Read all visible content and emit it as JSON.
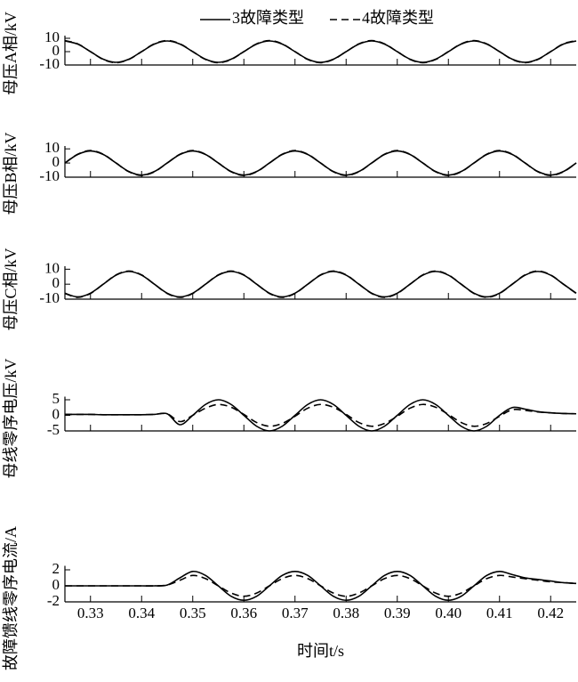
{
  "chart_data": [
    {
      "type": "line",
      "y_label": "母压A相/kV",
      "legend": "top",
      "x": [
        0.325,
        0.3275,
        0.33,
        0.3325,
        0.335,
        0.3375,
        0.34,
        0.3425,
        0.345,
        0.3475,
        0.35,
        0.3525,
        0.355,
        0.3575,
        0.36,
        0.3625,
        0.365,
        0.3675,
        0.37,
        0.3725,
        0.375,
        0.3775,
        0.38,
        0.3825,
        0.385,
        0.3875,
        0.39,
        0.3925,
        0.395,
        0.3975,
        0.4,
        0.4025,
        0.405,
        0.4075,
        0.41,
        0.4125,
        0.415,
        0.4175,
        0.42,
        0.4225,
        0.425
      ],
      "xlim": [
        0.325,
        0.425
      ],
      "ylim": [
        -10,
        12
      ],
      "yticks": [
        -10,
        0,
        10
      ],
      "series": [
        {
          "name": "3故障类型",
          "color": "#000000",
          "line_style": "solid",
          "values": [
            8,
            5.66,
            0,
            -5.66,
            -8,
            -5.66,
            0,
            5.66,
            8,
            5.66,
            0,
            -5.66,
            -8,
            -5.66,
            0,
            5.66,
            8,
            5.66,
            0,
            -5.66,
            -8,
            -5.66,
            0,
            5.66,
            8,
            5.66,
            0,
            -5.66,
            -8,
            -5.66,
            0,
            5.66,
            8,
            5.66,
            0,
            -5.66,
            -8,
            -5.66,
            0,
            5.66,
            8
          ]
        },
        {
          "name": "4故障类型",
          "color": "#000000",
          "line_style": "dashed",
          "values": [
            8.3,
            5.87,
            0,
            -5.87,
            -8.3,
            -5.87,
            0,
            5.87,
            8.3,
            5.87,
            0,
            -5.87,
            -8.3,
            -5.87,
            0,
            5.87,
            8.3,
            5.87,
            0,
            -5.87,
            -8.3,
            -5.87,
            0,
            5.87,
            8.3,
            5.87,
            0,
            -5.87,
            -8.3,
            -5.87,
            0,
            5.87,
            8.3,
            5.87,
            0,
            -5.87,
            -8.3,
            -5.87,
            0,
            5.87,
            8.3
          ]
        }
      ]
    },
    {
      "type": "line",
      "y_label": "母压B相/kV",
      "x": [
        0.325,
        0.3275,
        0.33,
        0.3325,
        0.335,
        0.3375,
        0.34,
        0.3425,
        0.345,
        0.3475,
        0.35,
        0.3525,
        0.355,
        0.3575,
        0.36,
        0.3625,
        0.365,
        0.3675,
        0.37,
        0.3725,
        0.375,
        0.3775,
        0.38,
        0.3825,
        0.385,
        0.3875,
        0.39,
        0.3925,
        0.395,
        0.3975,
        0.4,
        0.4025,
        0.405,
        0.4075,
        0.41,
        0.4125,
        0.415,
        0.4175,
        0.42,
        0.4225,
        0.425
      ],
      "xlim": [
        0.325,
        0.425
      ],
      "ylim": [
        -10,
        12
      ],
      "yticks": [
        -10,
        0,
        10
      ],
      "series": [
        {
          "name": "3故障类型",
          "color": "#000000",
          "line_style": "solid",
          "values": [
            0,
            6.01,
            8.5,
            6.01,
            0,
            -6.01,
            -8.5,
            -6.01,
            0,
            6.01,
            8.5,
            6.01,
            0,
            -6.01,
            -8.5,
            -6.01,
            0,
            6.01,
            8.5,
            6.01,
            0,
            -6.01,
            -8.5,
            -6.01,
            0,
            6.01,
            8.5,
            6.01,
            0,
            -6.01,
            -8.5,
            -6.01,
            0,
            6.01,
            8.5,
            6.01,
            0,
            -6.01,
            -8.5,
            -6.01,
            0
          ]
        },
        {
          "name": "4故障类型",
          "color": "#000000",
          "line_style": "dashed",
          "values": [
            0,
            6.2,
            8.8,
            6.2,
            0,
            -6.2,
            -8.8,
            -6.2,
            0,
            6.2,
            8.8,
            6.2,
            0,
            -6.2,
            -8.8,
            -6.2,
            0,
            6.2,
            8.8,
            6.2,
            0,
            -6.2,
            -8.8,
            -6.2,
            0,
            6.2,
            8.8,
            6.2,
            0,
            -6.2,
            -8.8,
            -6.2,
            0,
            6.2,
            8.8,
            6.2,
            0,
            -6.2,
            -8.8,
            -6.2,
            0
          ]
        }
      ]
    },
    {
      "type": "line",
      "y_label": "母压C相/kV",
      "x": [
        0.325,
        0.3275,
        0.33,
        0.3325,
        0.335,
        0.3375,
        0.34,
        0.3425,
        0.345,
        0.3475,
        0.35,
        0.3525,
        0.355,
        0.3575,
        0.36,
        0.3625,
        0.365,
        0.3675,
        0.37,
        0.3725,
        0.375,
        0.3775,
        0.38,
        0.3825,
        0.385,
        0.3875,
        0.39,
        0.3925,
        0.395,
        0.3975,
        0.4,
        0.4025,
        0.405,
        0.4075,
        0.41,
        0.4125,
        0.415,
        0.4175,
        0.42,
        0.4225,
        0.425
      ],
      "xlim": [
        0.325,
        0.425
      ],
      "ylim": [
        -10,
        12
      ],
      "yticks": [
        -10,
        0,
        10
      ],
      "series": [
        {
          "name": "3故障类型",
          "color": "#000000",
          "line_style": "solid",
          "values": [
            -6.01,
            -8.5,
            -6.01,
            0,
            6.01,
            8.5,
            6.01,
            0,
            -6.01,
            -8.5,
            -6.01,
            0,
            6.01,
            8.5,
            6.01,
            0,
            -6.01,
            -8.5,
            -6.01,
            0,
            6.01,
            8.5,
            6.01,
            0,
            -6.01,
            -8.5,
            -6.01,
            0,
            6.01,
            8.5,
            6.01,
            0,
            -6.01,
            -8.5,
            -6.01,
            0,
            6.01,
            8.5,
            6.01,
            0,
            -6.01
          ]
        },
        {
          "name": "4故障类型",
          "color": "#000000",
          "line_style": "dashed",
          "values": [
            -6.2,
            -8.8,
            -6.2,
            0,
            6.2,
            8.8,
            6.2,
            0,
            -6.2,
            -8.8,
            -6.2,
            0,
            6.2,
            8.8,
            6.2,
            0,
            -6.2,
            -8.8,
            -6.2,
            0,
            6.2,
            8.8,
            6.2,
            0,
            -6.2,
            -8.8,
            -6.2,
            0,
            6.2,
            8.8,
            6.2,
            0,
            -6.2,
            -8.8,
            -6.2,
            0,
            6.2,
            8.8,
            6.2,
            0,
            -6.2
          ]
        }
      ]
    },
    {
      "type": "line",
      "y_label": "母线零序电压/kV",
      "x": [
        0.325,
        0.3275,
        0.33,
        0.3325,
        0.335,
        0.3375,
        0.34,
        0.3425,
        0.345,
        0.3475,
        0.35,
        0.3525,
        0.355,
        0.3575,
        0.36,
        0.3625,
        0.365,
        0.3675,
        0.37,
        0.3725,
        0.375,
        0.3775,
        0.38,
        0.3825,
        0.385,
        0.3875,
        0.39,
        0.3925,
        0.395,
        0.3975,
        0.4,
        0.4025,
        0.405,
        0.4075,
        0.41,
        0.4125,
        0.415,
        0.4175,
        0.42,
        0.4225,
        0.425
      ],
      "xlim": [
        0.325,
        0.425
      ],
      "ylim": [
        -5,
        6
      ],
      "yticks": [
        -5,
        0,
        5
      ],
      "series": [
        {
          "name": "3故障类型",
          "color": "#000000",
          "line_style": "solid",
          "values": [
            0.3,
            0.3,
            0.3,
            0.2,
            0.2,
            0.2,
            0.2,
            0.3,
            0.5,
            -3,
            0,
            3.5,
            5,
            3.5,
            0,
            -3.5,
            -5,
            -3.5,
            0,
            3.5,
            5,
            3.5,
            0,
            -3.5,
            -5,
            -3.5,
            0,
            3.5,
            5,
            3.5,
            0,
            -3.5,
            -5,
            -3.5,
            0,
            2.5,
            2,
            1.2,
            0.8,
            0.6,
            0.5
          ]
        },
        {
          "name": "4故障类型",
          "color": "#000000",
          "line_style": "dashed",
          "values": [
            0.3,
            0.3,
            0.3,
            0.2,
            0.2,
            0.2,
            0.2,
            0.3,
            0.5,
            -2,
            0,
            2.3,
            3.5,
            2.6,
            0.3,
            -2.3,
            -3.5,
            -2.6,
            -0.3,
            2.3,
            3.5,
            2.6,
            0.3,
            -2.3,
            -3.5,
            -2.6,
            -0.3,
            2.3,
            3.5,
            2.6,
            0.3,
            -2.3,
            -3.5,
            -2.6,
            -0.3,
            1.8,
            1.6,
            1.1,
            0.8,
            0.6,
            0.5
          ]
        }
      ]
    },
    {
      "type": "line",
      "y_label": "故障馈线零序电流/A",
      "x_label": "时间t/s",
      "x": [
        0.325,
        0.3275,
        0.33,
        0.3325,
        0.335,
        0.3375,
        0.34,
        0.3425,
        0.345,
        0.3475,
        0.35,
        0.3525,
        0.355,
        0.3575,
        0.36,
        0.3625,
        0.365,
        0.3675,
        0.37,
        0.3725,
        0.375,
        0.3775,
        0.38,
        0.3825,
        0.385,
        0.3875,
        0.39,
        0.3925,
        0.395,
        0.3975,
        0.4,
        0.4025,
        0.405,
        0.4075,
        0.41,
        0.4125,
        0.415,
        0.4175,
        0.42,
        0.4225,
        0.425
      ],
      "xlim": [
        0.325,
        0.425
      ],
      "ylim": [
        -2,
        2.5
      ],
      "yticks": [
        -2,
        0,
        2
      ],
      "xticks": [
        0.33,
        0.34,
        0.35,
        0.36,
        0.37,
        0.38,
        0.39,
        {
          "value": 0.4,
          "label": "0.40"
        },
        0.41,
        0.42
      ],
      "series": [
        {
          "name": "3故障类型",
          "color": "#000000",
          "line_style": "solid",
          "values": [
            0,
            0,
            0,
            0,
            0,
            0,
            0,
            0,
            0.1,
            1,
            1.8,
            1.3,
            0,
            -1.3,
            -1.8,
            -1.3,
            0,
            1.3,
            1.8,
            1.3,
            0,
            -1.3,
            -1.8,
            -1.3,
            0,
            1.3,
            1.8,
            1.3,
            0,
            -1.3,
            -1.8,
            -1.3,
            0,
            1.3,
            1.8,
            1.4,
            1,
            0.8,
            0.6,
            0.4,
            0.3
          ]
        },
        {
          "name": "4故障类型",
          "color": "#000000",
          "line_style": "dashed",
          "values": [
            0,
            0,
            0,
            0,
            0,
            0,
            0,
            0,
            0.1,
            0.7,
            1.3,
            0.9,
            0,
            -0.9,
            -1.3,
            -0.9,
            0,
            0.9,
            1.3,
            0.9,
            0,
            -0.9,
            -1.3,
            -0.9,
            0,
            0.9,
            1.3,
            0.9,
            0,
            -0.9,
            -1.3,
            -0.9,
            0,
            0.9,
            1.3,
            1.1,
            0.9,
            0.7,
            0.5,
            0.4,
            0.3
          ]
        }
      ]
    }
  ]
}
